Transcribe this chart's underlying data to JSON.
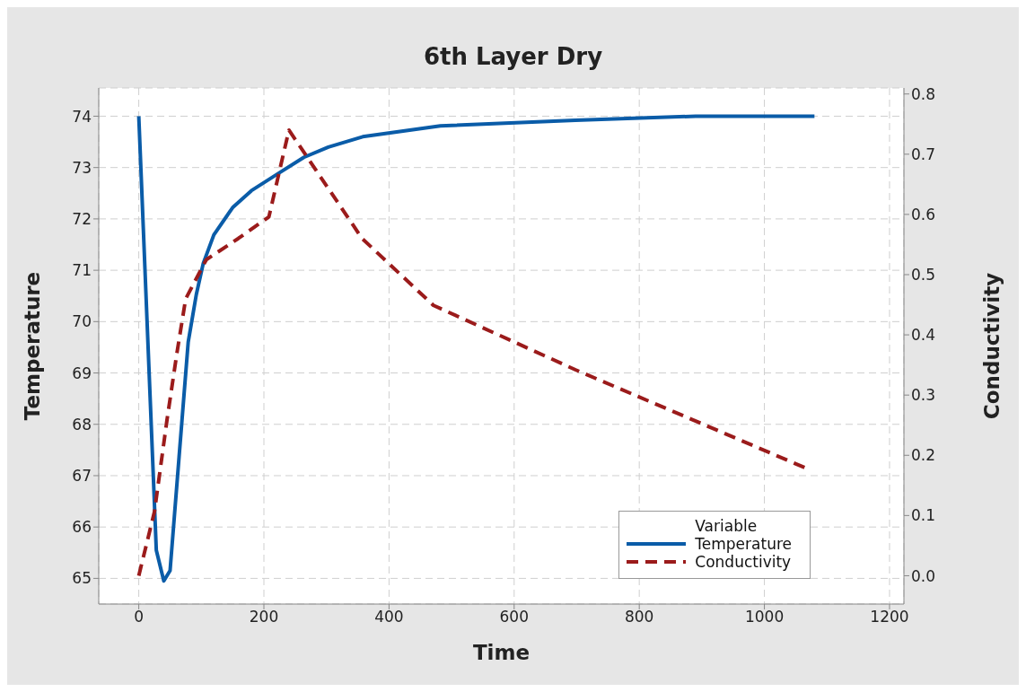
{
  "chart_data": {
    "type": "line",
    "title": "6th Layer Dry",
    "xlabel": "Time",
    "ylabel": "Temperature",
    "y2label": "Conductivity",
    "legend_title": "Variable",
    "series": [
      {
        "name": "Temperature",
        "color": "#0a5ca8",
        "line_style": "solid",
        "x": [
          0,
          28,
          40,
          50,
          69,
          79,
          92,
          103,
          120,
          150,
          180,
          225,
          264,
          303,
          358,
          482,
          698,
          890,
          1080
        ],
        "values": [
          74.0,
          65.55,
          64.95,
          65.15,
          68.07,
          69.6,
          70.53,
          71.13,
          71.69,
          72.22,
          72.55,
          72.9,
          73.2,
          73.4,
          73.6,
          73.81,
          73.92,
          74.0,
          74.0
        ]
      },
      {
        "name": "Conductivity",
        "color": "#9b1b1b",
        "line_style": "dashed",
        "axis": "y2",
        "x": [
          0,
          25,
          45,
          61,
          75,
          108,
          159,
          208,
          240,
          357,
          471,
          698,
          1068
        ],
        "values": [
          0.0,
          0.106,
          0.258,
          0.37,
          0.46,
          0.525,
          0.56,
          0.596,
          0.74,
          0.56,
          0.449,
          0.342,
          0.178
        ]
      }
    ],
    "xlim": [
      -64,
      1223
    ],
    "xticks": [
      0,
      200,
      400,
      600,
      800,
      1000,
      1200
    ],
    "ylim": [
      64.5,
      74.55
    ],
    "yticks": [
      65,
      66,
      67,
      68,
      69,
      70,
      71,
      72,
      73,
      74
    ],
    "y2lim": [
      -0.047,
      0.81
    ],
    "y2ticks": [
      {
        "value": 0,
        "label": "0.0"
      },
      0.1,
      0.2,
      0.3,
      0.4,
      0.5,
      0.6,
      0.7,
      0.8
    ],
    "grid": true,
    "legend": "bottom right",
    "marker": "none"
  }
}
